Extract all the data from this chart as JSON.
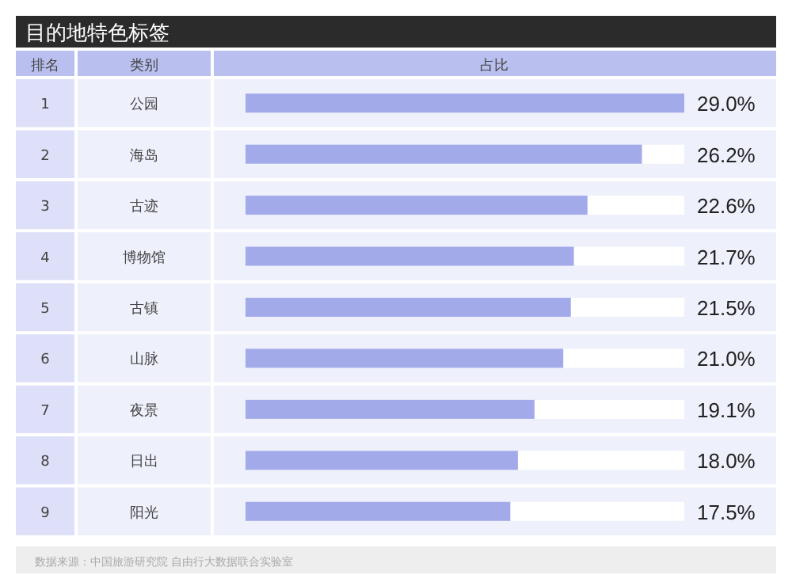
{
  "chart_data": {
    "type": "bar",
    "orientation": "horizontal",
    "title": "目的地特色标签",
    "ylabel": "类别",
    "xlabel": "占比",
    "categories": [
      "公园",
      "海岛",
      "古迹",
      "博物馆",
      "古镇",
      "山脉",
      "夜景",
      "日出",
      "阳光"
    ],
    "values": [
      29.0,
      26.2,
      22.6,
      21.7,
      21.5,
      21.0,
      19.1,
      18.0,
      17.5
    ],
    "value_labels": [
      "29.0%",
      "26.2%",
      "22.6%",
      "21.7%",
      "21.5%",
      "21.0%",
      "19.1%",
      "18.0%",
      "17.5%"
    ],
    "color": "#a3aaea",
    "xlim": [
      0,
      29.0
    ],
    "annotations": [
      "排名",
      "1",
      "2",
      "3",
      "4",
      "5",
      "6",
      "7",
      "8",
      "9",
      "数据来源：中国旅游研究院 自由行大数据联合实验室"
    ]
  }
}
